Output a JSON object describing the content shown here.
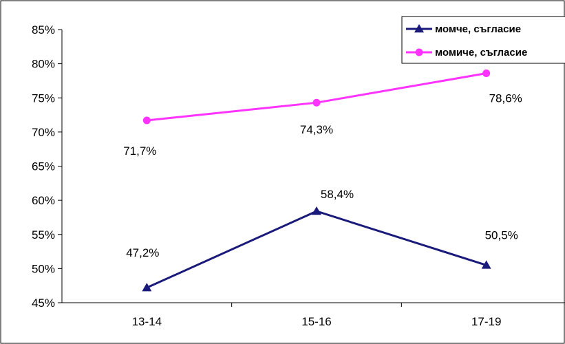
{
  "chart_data": {
    "type": "line",
    "categories": [
      "13-14",
      "15-16",
      "17-19"
    ],
    "series": [
      {
        "name": "момче, съгласие",
        "values": [
          47.2,
          58.4,
          50.5
        ],
        "labels": [
          "47,2%",
          "58,4%",
          "50,5%"
        ],
        "color": "#1a1a7a",
        "marker": "triangle"
      },
      {
        "name": "момиче, съгласие",
        "values": [
          71.7,
          74.3,
          78.6
        ],
        "labels": [
          "71,7%",
          "74,3%",
          "78,6%"
        ],
        "color": "#ff33ff",
        "marker": "circle"
      }
    ],
    "y_ticks": [
      45,
      50,
      55,
      60,
      65,
      70,
      75,
      80,
      85
    ],
    "y_tick_labels": [
      "45%",
      "50%",
      "55%",
      "60%",
      "65%",
      "70%",
      "75%",
      "80%",
      "85%"
    ],
    "ylim": [
      45,
      85
    ],
    "grid": false,
    "legend": "top-right"
  }
}
